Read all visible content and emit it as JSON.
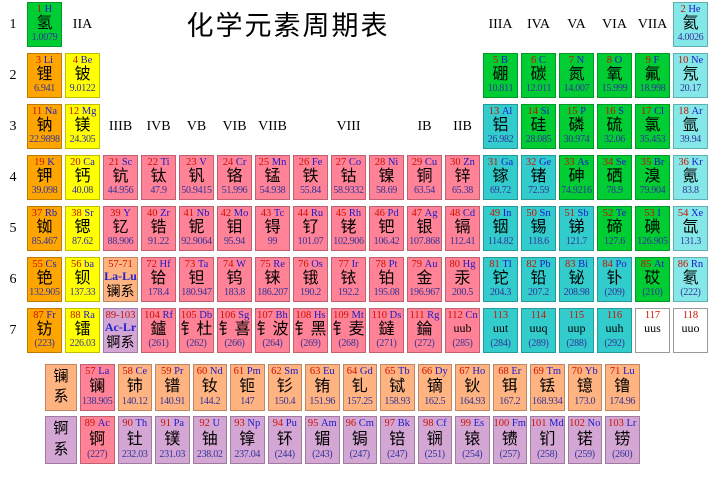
{
  "title": "化学元素周期表",
  "periods": [
    "1",
    "2",
    "3",
    "4",
    "5",
    "6",
    "7"
  ],
  "group_labels": {
    "row1": [
      {
        "text": "IIA",
        "col": 2
      },
      {
        "text": "IIIA",
        "col": 13
      },
      {
        "text": "IVA",
        "col": 14
      },
      {
        "text": "VA",
        "col": 15
      },
      {
        "text": "VIA",
        "col": 16
      },
      {
        "text": "VIIA",
        "col": 17
      }
    ],
    "row3": [
      {
        "text": "IIIB",
        "col": 3
      },
      {
        "text": "IVB",
        "col": 4
      },
      {
        "text": "VB",
        "col": 5
      },
      {
        "text": "VIB",
        "col": 6
      },
      {
        "text": "VIIB",
        "col": 7
      },
      {
        "text": "VIII",
        "col": 8,
        "span": 3
      },
      {
        "text": "IB",
        "col": 11
      },
      {
        "text": "IIB",
        "col": 12
      }
    ]
  },
  "legend_colors": {
    "nonmetal": "#00cc33",
    "alkali": "#ffa500",
    "alkaline_earth": "#ffff00",
    "transition": "#ff8296",
    "post_transition": "#33cccc",
    "noble_gas": "#85e8e8",
    "lanthanide": "#ffb380",
    "actinide": "#d4a6d4",
    "undiscovered": "#ffffff"
  },
  "elements": [
    {
      "num": "1",
      "sym": "H",
      "name": "氢",
      "mass": "1.0079",
      "cat": "nonmetal",
      "p": 1,
      "c": 1
    },
    {
      "num": "2",
      "sym": "He",
      "name": "氦",
      "mass": "4.0026",
      "cat": "noble_gas",
      "p": 1,
      "c": 18
    },
    {
      "num": "3",
      "sym": "Li",
      "name": "锂",
      "mass": "6.941",
      "cat": "alkali",
      "p": 2,
      "c": 1
    },
    {
      "num": "4",
      "sym": "Be",
      "name": "铍",
      "mass": "9.0122",
      "cat": "alkaline_earth",
      "p": 2,
      "c": 2
    },
    {
      "num": "5",
      "sym": "B",
      "name": "硼",
      "mass": "10.811",
      "cat": "nonmetal",
      "p": 2,
      "c": 13
    },
    {
      "num": "6",
      "sym": "C",
      "name": "碳",
      "mass": "12.011",
      "cat": "nonmetal",
      "p": 2,
      "c": 14
    },
    {
      "num": "7",
      "sym": "N",
      "name": "氮",
      "mass": "14.007",
      "cat": "nonmetal",
      "p": 2,
      "c": 15
    },
    {
      "num": "8",
      "sym": "O",
      "name": "氧",
      "mass": "15.999",
      "cat": "nonmetal",
      "p": 2,
      "c": 16
    },
    {
      "num": "9",
      "sym": "F",
      "name": "氟",
      "mass": "18.998",
      "cat": "nonmetal",
      "p": 2,
      "c": 17
    },
    {
      "num": "10",
      "sym": "Ne",
      "name": "氖",
      "mass": "20.17",
      "cat": "noble_gas",
      "p": 2,
      "c": 18
    },
    {
      "num": "11",
      "sym": "Na",
      "name": "钠",
      "mass": "22.9898",
      "cat": "alkali",
      "p": 3,
      "c": 1
    },
    {
      "num": "12",
      "sym": "Mg",
      "name": "镁",
      "mass": "24.305",
      "cat": "alkaline_earth",
      "p": 3,
      "c": 2
    },
    {
      "num": "13",
      "sym": "Al",
      "name": "铝",
      "mass": "26.982",
      "cat": "post_transition",
      "p": 3,
      "c": 13
    },
    {
      "num": "14",
      "sym": "Si",
      "name": "硅",
      "mass": "28.085",
      "cat": "nonmetal",
      "p": 3,
      "c": 14
    },
    {
      "num": "15",
      "sym": "P",
      "name": "磷",
      "mass": "30.974",
      "cat": "nonmetal",
      "p": 3,
      "c": 15
    },
    {
      "num": "16",
      "sym": "S",
      "name": "硫",
      "mass": "32.06",
      "cat": "nonmetal",
      "p": 3,
      "c": 16
    },
    {
      "num": "17",
      "sym": "Cl",
      "name": "氯",
      "mass": "35.453",
      "cat": "nonmetal",
      "p": 3,
      "c": 17
    },
    {
      "num": "18",
      "sym": "Ar",
      "name": "氩",
      "mass": "39.94",
      "cat": "noble_gas",
      "p": 3,
      "c": 18
    },
    {
      "num": "19",
      "sym": "K",
      "name": "钾",
      "mass": "39.098",
      "cat": "alkali",
      "p": 4,
      "c": 1
    },
    {
      "num": "20",
      "sym": "Ca",
      "name": "钙",
      "mass": "40.08",
      "cat": "alkaline_earth",
      "p": 4,
      "c": 2
    },
    {
      "num": "21",
      "sym": "Sc",
      "name": "钪",
      "mass": "44.956",
      "cat": "transition",
      "p": 4,
      "c": 3
    },
    {
      "num": "22",
      "sym": "Ti",
      "name": "钛",
      "mass": "47.9",
      "cat": "transition",
      "p": 4,
      "c": 4
    },
    {
      "num": "23",
      "sym": "V",
      "name": "钒",
      "mass": "50.9415",
      "cat": "transition",
      "p": 4,
      "c": 5
    },
    {
      "num": "24",
      "sym": "Cr",
      "name": "铬",
      "mass": "51.996",
      "cat": "transition",
      "p": 4,
      "c": 6
    },
    {
      "num": "25",
      "sym": "Mn",
      "name": "锰",
      "mass": "54.938",
      "cat": "transition",
      "p": 4,
      "c": 7
    },
    {
      "num": "26",
      "sym": "Fe",
      "name": "铁",
      "mass": "55.84",
      "cat": "transition",
      "p": 4,
      "c": 8
    },
    {
      "num": "27",
      "sym": "Co",
      "name": "钴",
      "mass": "58.9332",
      "cat": "transition",
      "p": 4,
      "c": 9
    },
    {
      "num": "28",
      "sym": "Ni",
      "name": "镍",
      "mass": "58.69",
      "cat": "transition",
      "p": 4,
      "c": 10
    },
    {
      "num": "29",
      "sym": "Cu",
      "name": "铜",
      "mass": "63.54",
      "cat": "transition",
      "p": 4,
      "c": 11
    },
    {
      "num": "30",
      "sym": "Zn",
      "name": "锌",
      "mass": "65.38",
      "cat": "transition",
      "p": 4,
      "c": 12
    },
    {
      "num": "31",
      "sym": "Ga",
      "name": "镓",
      "mass": "69.72",
      "cat": "post_transition",
      "p": 4,
      "c": 13
    },
    {
      "num": "32",
      "sym": "Ge",
      "name": "锗",
      "mass": "72.59",
      "cat": "post_transition",
      "p": 4,
      "c": 14
    },
    {
      "num": "33",
      "sym": "As",
      "name": "砷",
      "mass": "74.9216",
      "cat": "nonmetal",
      "p": 4,
      "c": 15
    },
    {
      "num": "34",
      "sym": "Se",
      "name": "硒",
      "mass": "78.9",
      "cat": "nonmetal",
      "p": 4,
      "c": 16
    },
    {
      "num": "35",
      "sym": "Br",
      "name": "溴",
      "mass": "79.904",
      "cat": "nonmetal",
      "p": 4,
      "c": 17
    },
    {
      "num": "36",
      "sym": "Kr",
      "name": "氪",
      "mass": "83.8",
      "cat": "noble_gas",
      "p": 4,
      "c": 18
    },
    {
      "num": "37",
      "sym": "Rb",
      "name": "铷",
      "mass": "85.467",
      "cat": "alkali",
      "p": 5,
      "c": 1
    },
    {
      "num": "38",
      "sym": "Sr",
      "name": "锶",
      "mass": "87.62",
      "cat": "alkaline_earth",
      "p": 5,
      "c": 2
    },
    {
      "num": "39",
      "sym": "Y",
      "name": "钇",
      "mass": "88.906",
      "cat": "transition",
      "p": 5,
      "c": 3
    },
    {
      "num": "40",
      "sym": "Zr",
      "name": "锆",
      "mass": "91.22",
      "cat": "transition",
      "p": 5,
      "c": 4
    },
    {
      "num": "41",
      "sym": "Nb",
      "name": "铌",
      "mass": "92.9064",
      "cat": "transition",
      "p": 5,
      "c": 5
    },
    {
      "num": "42",
      "sym": "Mo",
      "name": "钼",
      "mass": "95.94",
      "cat": "transition",
      "p": 5,
      "c": 6
    },
    {
      "num": "43",
      "sym": "Tc",
      "name": "锝",
      "mass": "99",
      "cat": "transition",
      "p": 5,
      "c": 7
    },
    {
      "num": "44",
      "sym": "Ru",
      "name": "钌",
      "mass": "101.07",
      "cat": "transition",
      "p": 5,
      "c": 8
    },
    {
      "num": "45",
      "sym": "Rh",
      "name": "铑",
      "mass": "102.906",
      "cat": "transition",
      "p": 5,
      "c": 9
    },
    {
      "num": "46",
      "sym": "Pd",
      "name": "钯",
      "mass": "106.42",
      "cat": "transition",
      "p": 5,
      "c": 10
    },
    {
      "num": "47",
      "sym": "Ag",
      "name": "银",
      "mass": "107.868",
      "cat": "transition",
      "p": 5,
      "c": 11
    },
    {
      "num": "48",
      "sym": "Cd",
      "name": "镉",
      "mass": "112.41",
      "cat": "transition",
      "p": 5,
      "c": 12
    },
    {
      "num": "49",
      "sym": "In",
      "name": "铟",
      "mass": "114.82",
      "cat": "post_transition",
      "p": 5,
      "c": 13
    },
    {
      "num": "50",
      "sym": "Sn",
      "name": "锡",
      "mass": "118.6",
      "cat": "post_transition",
      "p": 5,
      "c": 14
    },
    {
      "num": "51",
      "sym": "Sb",
      "name": "锑",
      "mass": "121.7",
      "cat": "post_transition",
      "p": 5,
      "c": 15
    },
    {
      "num": "52",
      "sym": "Te",
      "name": "碲",
      "mass": "127.6",
      "cat": "nonmetal",
      "p": 5,
      "c": 16
    },
    {
      "num": "53",
      "sym": "I",
      "name": "碘",
      "mass": "126.905",
      "cat": "nonmetal",
      "p": 5,
      "c": 17
    },
    {
      "num": "54",
      "sym": "Xe",
      "name": "氙",
      "mass": "131.3",
      "cat": "noble_gas",
      "p": 5,
      "c": 18
    },
    {
      "num": "55",
      "sym": "Cs",
      "name": "铯",
      "mass": "132.905",
      "cat": "alkali",
      "p": 6,
      "c": 1
    },
    {
      "num": "56",
      "sym": "ba",
      "name": "钡",
      "mass": "137.33",
      "cat": "alkaline_earth",
      "p": 6,
      "c": 2
    },
    {
      "num": "57-71",
      "sym": "La-Lu",
      "name": "镧系",
      "cat": "lanthanide",
      "p": 6,
      "c": 3,
      "v": "range"
    },
    {
      "num": "72",
      "sym": "Hf",
      "name": "铪",
      "mass": "178.4",
      "cat": "transition",
      "p": 6,
      "c": 4
    },
    {
      "num": "73",
      "sym": "Ta",
      "name": "钽",
      "mass": "180.947",
      "cat": "transition",
      "p": 6,
      "c": 5
    },
    {
      "num": "74",
      "sym": "W",
      "name": "钨",
      "mass": "183.8",
      "cat": "transition",
      "p": 6,
      "c": 6
    },
    {
      "num": "75",
      "sym": "Re",
      "name": "铼",
      "mass": "186.207",
      "cat": "transition",
      "p": 6,
      "c": 7
    },
    {
      "num": "76",
      "sym": "Os",
      "name": "锇",
      "mass": "190.2",
      "cat": "transition",
      "p": 6,
      "c": 8
    },
    {
      "num": "77",
      "sym": "Ir",
      "name": "铱",
      "mass": "192.2",
      "cat": "transition",
      "p": 6,
      "c": 9
    },
    {
      "num": "78",
      "sym": "Pt",
      "name": "铂",
      "mass": "195.08",
      "cat": "transition",
      "p": 6,
      "c": 10
    },
    {
      "num": "79",
      "sym": "Au",
      "name": "金",
      "mass": "196.967",
      "cat": "transition",
      "p": 6,
      "c": 11
    },
    {
      "num": "80",
      "sym": "Hg",
      "name": "汞",
      "mass": "200.5",
      "cat": "transition",
      "p": 6,
      "c": 12
    },
    {
      "num": "81",
      "sym": "Tl",
      "name": "铊",
      "mass": "204.3",
      "cat": "post_transition",
      "p": 6,
      "c": 13
    },
    {
      "num": "82",
      "sym": "Pb",
      "name": "铅",
      "mass": "207.2",
      "cat": "post_transition",
      "p": 6,
      "c": 14
    },
    {
      "num": "83",
      "sym": "Bi",
      "name": "铋",
      "mass": "208.98",
      "cat": "post_transition",
      "p": 6,
      "c": 15
    },
    {
      "num": "84",
      "sym": "Po",
      "name": "钋",
      "mass": "(209)",
      "cat": "post_transition",
      "p": 6,
      "c": 16
    },
    {
      "num": "85",
      "sym": "At",
      "name": "砹",
      "mass": "(210)",
      "cat": "nonmetal",
      "p": 6,
      "c": 17
    },
    {
      "num": "86",
      "sym": "Rn",
      "name": "氡",
      "mass": "(222)",
      "cat": "noble_gas",
      "p": 6,
      "c": 18
    },
    {
      "num": "87",
      "sym": "Fr",
      "name": "钫",
      "mass": "(223)",
      "cat": "alkali",
      "p": 7,
      "c": 1
    },
    {
      "num": "88",
      "sym": "Ra",
      "name": "镭",
      "mass": "226.03",
      "cat": "alkaline_earth",
      "p": 7,
      "c": 2
    },
    {
      "num": "89-103",
      "sym": "Ac-Lr",
      "name": "锕系",
      "cat": "actinide",
      "p": 7,
      "c": 3,
      "v": "range"
    },
    {
      "num": "104",
      "sym": "Rf",
      "name": "鑪",
      "mass": "(261)",
      "cat": "transition",
      "p": 7,
      "c": 4
    },
    {
      "num": "105",
      "sym": "Db",
      "name": "钅杜",
      "mass": "(262)",
      "cat": "transition",
      "p": 7,
      "c": 5
    },
    {
      "num": "106",
      "sym": "Sg",
      "name": "钅喜",
      "mass": "(266)",
      "cat": "transition",
      "p": 7,
      "c": 6
    },
    {
      "num": "107",
      "sym": "Bh",
      "name": "钅波",
      "mass": "(264)",
      "cat": "transition",
      "p": 7,
      "c": 7
    },
    {
      "num": "108",
      "sym": "Hs",
      "name": "钅黑",
      "mass": "(269)",
      "cat": "transition",
      "p": 7,
      "c": 8
    },
    {
      "num": "109",
      "sym": "Mt",
      "name": "钅麦",
      "mass": "(268)",
      "cat": "transition",
      "p": 7,
      "c": 9
    },
    {
      "num": "110",
      "sym": "Ds",
      "name": "鐽",
      "mass": "(271)",
      "cat": "transition",
      "p": 7,
      "c": 10
    },
    {
      "num": "111",
      "sym": "Rg",
      "name": "錀",
      "mass": "(272)",
      "cat": "transition",
      "p": 7,
      "c": 11
    },
    {
      "num": "112",
      "sym": "Cn",
      "name": "uub",
      "mass": "(285)",
      "cat": "transition",
      "p": 7,
      "c": 12
    },
    {
      "num": "113",
      "sym": "uut",
      "mass": "(284)",
      "cat": "post_transition",
      "p": 7,
      "c": 13,
      "v": "unnamed"
    },
    {
      "num": "114",
      "sym": "uuq",
      "mass": "(289)",
      "cat": "post_transition",
      "p": 7,
      "c": 14,
      "v": "unnamed"
    },
    {
      "num": "115",
      "sym": "uup",
      "mass": "(288)",
      "cat": "post_transition",
      "p": 7,
      "c": 15,
      "v": "unnamed"
    },
    {
      "num": "116",
      "sym": "uuh",
      "mass": "(292)",
      "cat": "post_transition",
      "p": 7,
      "c": 16,
      "v": "unnamed"
    },
    {
      "num": "117",
      "sym": "uus",
      "mass": "",
      "cat": "undiscovered",
      "p": 7,
      "c": 17,
      "v": "unnamed"
    },
    {
      "num": "118",
      "sym": "uuo",
      "mass": "",
      "cat": "undiscovered",
      "p": 7,
      "c": 18,
      "v": "unnamed"
    }
  ],
  "series": {
    "lanthanide_label": "镧系",
    "actinide_label": "锕系",
    "lanthanides": [
      {
        "num": "57",
        "sym": "La",
        "name": "镧",
        "mass": "138.905",
        "cat": "transition"
      },
      {
        "num": "58",
        "sym": "Ce",
        "name": "铈",
        "mass": "140.12",
        "cat": "lanthanide"
      },
      {
        "num": "59",
        "sym": "Pr",
        "name": "镨",
        "mass": "140.91",
        "cat": "lanthanide"
      },
      {
        "num": "60",
        "sym": "Nd",
        "name": "钕",
        "mass": "144.2",
        "cat": "lanthanide"
      },
      {
        "num": "61",
        "sym": "Pm",
        "name": "钷",
        "mass": "147",
        "cat": "lanthanide"
      },
      {
        "num": "62",
        "sym": "Sm",
        "name": "钐",
        "mass": "150.4",
        "cat": "lanthanide"
      },
      {
        "num": "63",
        "sym": "Eu",
        "name": "铕",
        "mass": "151.96",
        "cat": "lanthanide"
      },
      {
        "num": "64",
        "sym": "Gd",
        "name": "钆",
        "mass": "157.25",
        "cat": "lanthanide"
      },
      {
        "num": "65",
        "sym": "Tb",
        "name": "铽",
        "mass": "158.93",
        "cat": "lanthanide"
      },
      {
        "num": "66",
        "sym": "Dy",
        "name": "镝",
        "mass": "162.5",
        "cat": "lanthanide"
      },
      {
        "num": "67",
        "sym": "Ho",
        "name": "钬",
        "mass": "164.93",
        "cat": "lanthanide"
      },
      {
        "num": "68",
        "sym": "Er",
        "name": "铒",
        "mass": "167.2",
        "cat": "lanthanide"
      },
      {
        "num": "69",
        "sym": "Tm",
        "name": "铥",
        "mass": "168.934",
        "cat": "lanthanide"
      },
      {
        "num": "70",
        "sym": "Yb",
        "name": "镱",
        "mass": "173.0",
        "cat": "lanthanide"
      },
      {
        "num": "71",
        "sym": "Lu",
        "name": "镥",
        "mass": "174.96",
        "cat": "lanthanide"
      }
    ],
    "actinides": [
      {
        "num": "89",
        "sym": "Ac",
        "name": "锕",
        "mass": "(227)",
        "cat": "transition"
      },
      {
        "num": "90",
        "sym": "Th",
        "name": "钍",
        "mass": "232.03",
        "cat": "actinide"
      },
      {
        "num": "91",
        "sym": "Pa",
        "name": "镤",
        "mass": "231.03",
        "cat": "actinide"
      },
      {
        "num": "92",
        "sym": "U",
        "name": "铀",
        "mass": "238.02",
        "cat": "actinide"
      },
      {
        "num": "93",
        "sym": "Np",
        "name": "镎",
        "mass": "237.04",
        "cat": "actinide"
      },
      {
        "num": "94",
        "sym": "Pu",
        "name": "钚",
        "mass": "(244)",
        "cat": "actinide"
      },
      {
        "num": "95",
        "sym": "Am",
        "name": "镅",
        "mass": "(243)",
        "cat": "actinide"
      },
      {
        "num": "96",
        "sym": "Cm",
        "name": "锔",
        "mass": "(247)",
        "cat": "actinide"
      },
      {
        "num": "97",
        "sym": "Bk",
        "name": "锫",
        "mass": "(247)",
        "cat": "actinide"
      },
      {
        "num": "98",
        "sym": "Cf",
        "name": "锎",
        "mass": "(251)",
        "cat": "actinide"
      },
      {
        "num": "99",
        "sym": "Es",
        "name": "锿",
        "mass": "(254)",
        "cat": "actinide"
      },
      {
        "num": "100",
        "sym": "Fm",
        "name": "镄",
        "mass": "(257)",
        "cat": "actinide"
      },
      {
        "num": "101",
        "sym": "Md",
        "name": "钔",
        "mass": "(258)",
        "cat": "actinide"
      },
      {
        "num": "102",
        "sym": "No",
        "name": "锘",
        "mass": "(259)",
        "cat": "actinide"
      },
      {
        "num": "103",
        "sym": "Lr",
        "name": "铹",
        "mass": "(260)",
        "cat": "actinide"
      }
    ]
  }
}
